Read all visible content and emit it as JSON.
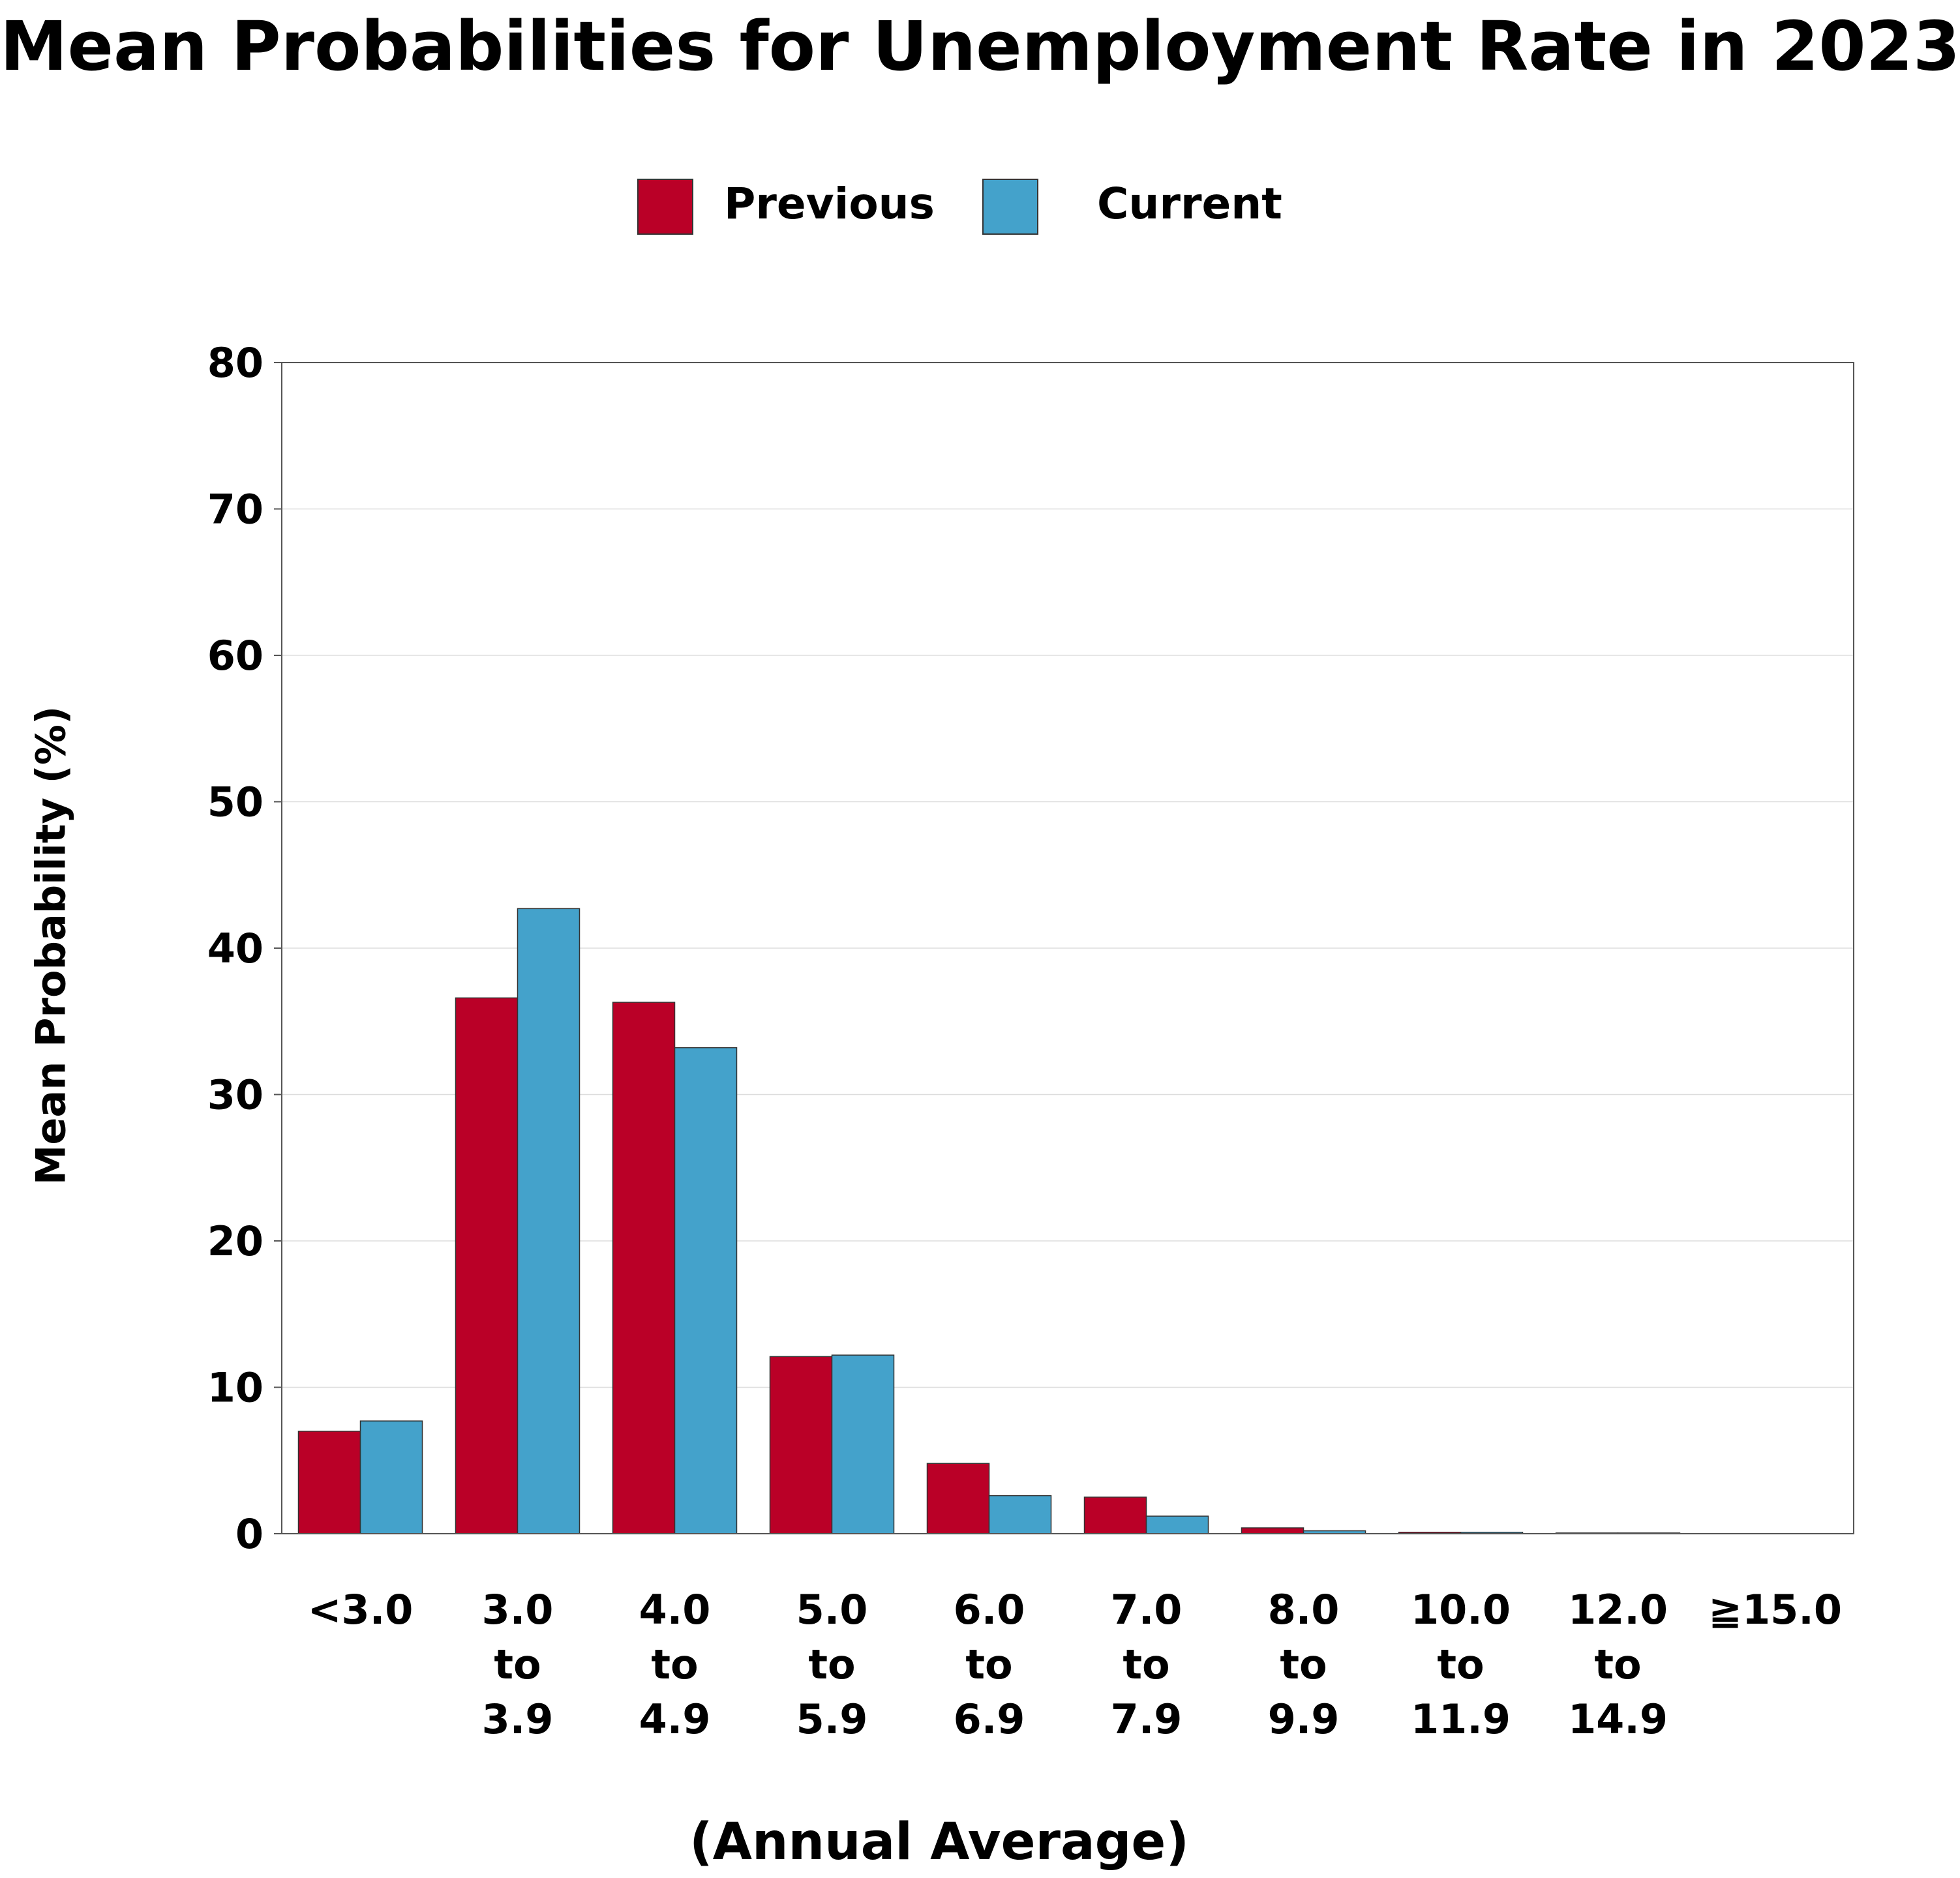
{
  "title": "Mean Probabilities for Unemployment Rate in 2023",
  "legend": {
    "previous": "Previous",
    "current": "Current"
  },
  "colors": {
    "previous": "#BA0027",
    "current": "#44A2CB"
  },
  "chart_data": {
    "type": "bar",
    "title": "Mean Probabilities for Unemployment Rate in 2023",
    "xlabel": "(Annual Average)",
    "ylabel": "Mean Probability (%)",
    "ylim": [
      0,
      80
    ],
    "yticks": [
      0,
      10,
      20,
      30,
      40,
      50,
      60,
      70,
      80
    ],
    "grid": true,
    "legend_position": "top-center",
    "categories": [
      "<3.0",
      "3.0 to 3.9",
      "4.0 to 4.9",
      "5.0 to 5.9",
      "6.0 to 6.9",
      "7.0 to 7.9",
      "8.0 to 9.9",
      "10.0 to 11.9",
      "12.0 to 14.9",
      "≧15.0"
    ],
    "category_lines": [
      [
        "<3.0"
      ],
      [
        "3.0",
        "to",
        "3.9"
      ],
      [
        "4.0",
        "to",
        "4.9"
      ],
      [
        "5.0",
        "to",
        "5.9"
      ],
      [
        "6.0",
        "to",
        "6.9"
      ],
      [
        "7.0",
        "to",
        "7.9"
      ],
      [
        "8.0",
        "to",
        "9.9"
      ],
      [
        "10.0",
        "to",
        "11.9"
      ],
      [
        "12.0",
        "to",
        "14.9"
      ],
      [
        "≧15.0"
      ]
    ],
    "series": [
      {
        "name": "Previous",
        "values": [
          7.0,
          36.6,
          36.3,
          12.1,
          4.8,
          2.5,
          0.4,
          0.1,
          0.05,
          0.0
        ]
      },
      {
        "name": "Current",
        "values": [
          7.7,
          42.7,
          33.2,
          12.2,
          2.6,
          1.2,
          0.2,
          0.1,
          0.05,
          0.0
        ]
      }
    ]
  }
}
